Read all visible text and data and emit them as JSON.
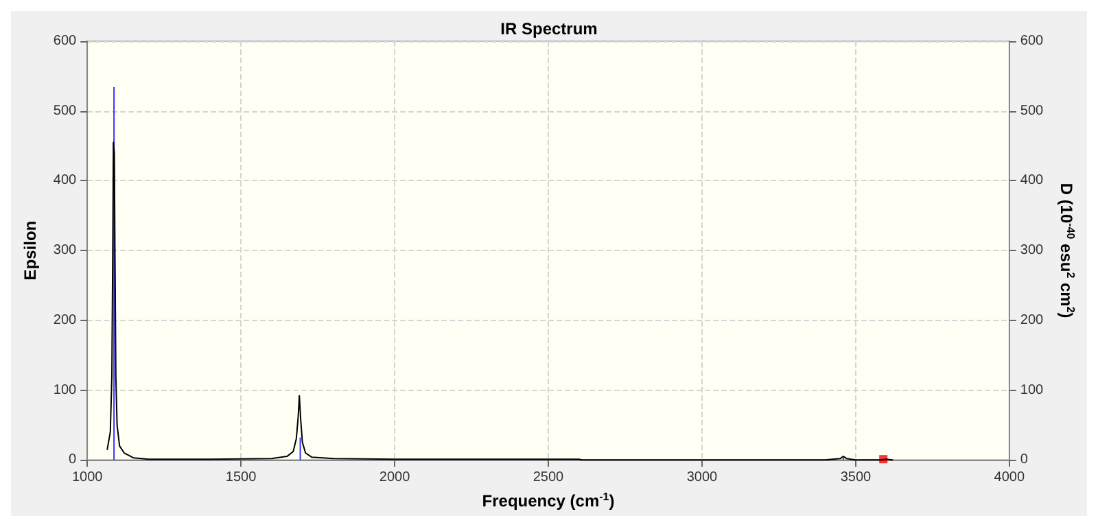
{
  "chart_data": {
    "type": "line",
    "title": "IR Spectrum",
    "xlabel": "Frequency (cm$^{-1}$)",
    "ylabel": "Epsilon",
    "y2label": "D (10$^{-40}$ esu$^{2}$ cm$^{2}$)",
    "xlim": [
      1000,
      4000
    ],
    "xticks": [
      1000,
      1500,
      2000,
      2500,
      3000,
      3500,
      4000
    ],
    "ylim": [
      0,
      600
    ],
    "yticks": [
      0,
      100,
      200,
      300,
      400,
      500,
      600
    ],
    "y2lim": [
      0,
      600
    ],
    "y2ticks": [
      0,
      100,
      200,
      300,
      400,
      500,
      600
    ],
    "grid": true,
    "marker": "none",
    "line_style": "solid",
    "series": [
      {
        "color": "#000000",
        "x": [
          1065,
          1075,
          1080,
          1083,
          1085,
          1088,
          1090,
          1093,
          1097,
          1105,
          1120,
          1150,
          1200,
          1400,
          1600,
          1650,
          1670,
          1680,
          1686,
          1690,
          1694,
          1700,
          1710,
          1730,
          1800,
          2000,
          2600,
          2610,
          3400,
          3450,
          3460,
          3470,
          3500,
          3580,
          3600,
          3620
        ],
        "values": [
          15,
          40,
          120,
          300,
          455,
          440,
          300,
          120,
          50,
          20,
          10,
          3,
          1,
          1,
          2,
          5,
          12,
          30,
          60,
          92,
          60,
          25,
          10,
          4,
          2,
          1,
          1,
          0,
          0,
          2,
          5,
          2,
          0,
          0,
          1,
          0
        ]
      },
      {
        "type": "bar",
        "color": "#3333ff",
        "x": [
          1087,
          1693,
          3460
        ],
        "values": [
          534,
          32,
          3
        ]
      },
      {
        "type": "scatter",
        "marker": "square",
        "color": "#ff0000",
        "x": [
          3590
        ],
        "values": [
          1
        ]
      }
    ]
  }
}
